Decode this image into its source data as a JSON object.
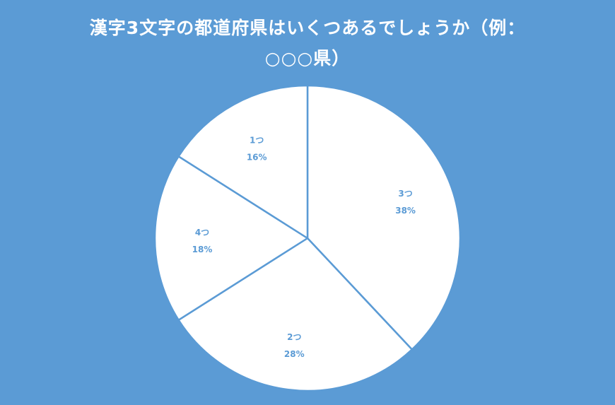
{
  "chart_data": {
    "type": "pie",
    "title_lines": [
      "漢字3文字の都道府県はいくつあるでしょうか（例：",
      "○○○県）"
    ],
    "categories": [
      "3つ",
      "2つ",
      "4つ",
      "1つ"
    ],
    "values": [
      38,
      28,
      18,
      16
    ],
    "value_labels": [
      "38%",
      "28%",
      "18%",
      "16%"
    ],
    "start_angle_deg": 0,
    "direction": "clockwise",
    "legend": "none",
    "colors": {
      "background": "#5b9bd5",
      "slice_fill": "#ffffff",
      "slice_border": "#5b9bd5",
      "label_text": "#5b9bd5",
      "title_text": "#ffffff"
    }
  }
}
